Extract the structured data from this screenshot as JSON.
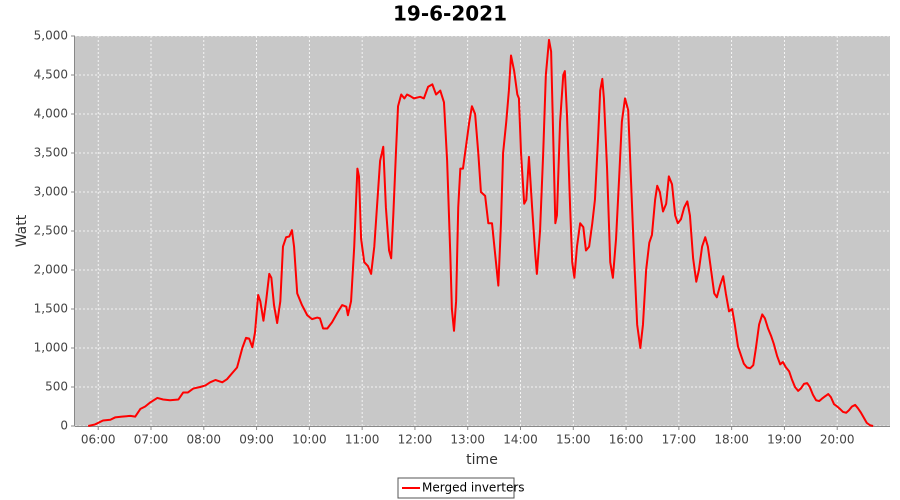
{
  "chart_data": {
    "type": "line",
    "title": "19-6-2021",
    "x_label": "time",
    "y_label": "Watt",
    "x": [
      5.81,
      5.94,
      6.09,
      6.23,
      6.32,
      6.45,
      6.61,
      6.7,
      6.8,
      6.89,
      6.98,
      7.12,
      7.23,
      7.36,
      7.52,
      7.61,
      7.7,
      7.8,
      7.93,
      8.03,
      8.12,
      8.22,
      8.35,
      8.44,
      8.54,
      8.63,
      8.73,
      8.8,
      8.86,
      8.92,
      8.97,
      9.03,
      9.07,
      9.13,
      9.18,
      9.24,
      9.28,
      9.33,
      9.39,
      9.45,
      9.5,
      9.56,
      9.62,
      9.67,
      9.71,
      9.77,
      9.86,
      9.96,
      10.05,
      10.15,
      10.2,
      10.26,
      10.34,
      10.43,
      10.53,
      10.62,
      10.7,
      10.73,
      10.79,
      10.85,
      10.91,
      10.94,
      10.98,
      11.04,
      11.11,
      11.17,
      11.23,
      11.28,
      11.34,
      11.4,
      11.45,
      11.51,
      11.55,
      11.59,
      11.64,
      11.68,
      11.74,
      11.8,
      11.85,
      11.91,
      11.98,
      12.1,
      12.17,
      12.25,
      12.33,
      12.4,
      12.48,
      12.55,
      12.61,
      12.67,
      12.7,
      12.74,
      12.78,
      12.82,
      12.86,
      12.91,
      12.97,
      13.03,
      13.08,
      13.14,
      13.2,
      13.25,
      13.33,
      13.39,
      13.46,
      13.52,
      13.58,
      13.63,
      13.67,
      13.73,
      13.78,
      13.82,
      13.88,
      13.94,
      13.97,
      14.01,
      14.07,
      14.11,
      14.16,
      14.22,
      14.28,
      14.31,
      14.37,
      14.43,
      14.48,
      14.54,
      14.58,
      14.62,
      14.66,
      14.69,
      14.75,
      14.81,
      14.84,
      14.88,
      14.94,
      14.98,
      15.02,
      15.07,
      15.13,
      15.19,
      15.24,
      15.3,
      15.36,
      15.41,
      15.47,
      15.51,
      15.55,
      15.58,
      15.64,
      15.7,
      15.75,
      15.81,
      15.87,
      15.92,
      15.98,
      16.04,
      16.09,
      16.15,
      16.21,
      16.27,
      16.32,
      16.38,
      16.44,
      16.49,
      16.55,
      16.59,
      16.64,
      16.7,
      16.76,
      16.81,
      16.87,
      16.93,
      16.98,
      17.04,
      17.1,
      17.16,
      17.21,
      17.27,
      17.33,
      17.38,
      17.44,
      17.5,
      17.55,
      17.61,
      17.67,
      17.72,
      17.78,
      17.84,
      17.89,
      17.95,
      18.01,
      18.06,
      18.12,
      18.18,
      18.23,
      18.29,
      18.35,
      18.41,
      18.46,
      18.52,
      18.58,
      18.63,
      18.69,
      18.75,
      18.8,
      18.86,
      18.92,
      18.97,
      19.03,
      19.09,
      19.14,
      19.2,
      19.26,
      19.31,
      19.37,
      19.43,
      19.48,
      19.54,
      19.6,
      19.66,
      19.71,
      19.77,
      19.83,
      19.88,
      19.94,
      20.0,
      20.05,
      20.11,
      20.17,
      20.22,
      20.28,
      20.34,
      20.39,
      20.45,
      20.51,
      20.56,
      20.62,
      20.68
    ],
    "series": [
      {
        "name": "Merged inverters",
        "color": "#ff0000",
        "values": [
          0,
          20,
          70,
          80,
          110,
          120,
          130,
          120,
          220,
          250,
          300,
          360,
          340,
          330,
          340,
          430,
          430,
          480,
          500,
          520,
          560,
          590,
          560,
          600,
          680,
          750,
          1000,
          1130,
          1120,
          1010,
          1200,
          1680,
          1600,
          1350,
          1600,
          1950,
          1900,
          1550,
          1320,
          1600,
          2300,
          2420,
          2430,
          2510,
          2300,
          1700,
          1550,
          1420,
          1370,
          1390,
          1380,
          1250,
          1250,
          1330,
          1450,
          1550,
          1530,
          1420,
          1600,
          2300,
          3300,
          3200,
          2400,
          2100,
          2050,
          1950,
          2300,
          2800,
          3400,
          3580,
          2800,
          2250,
          2150,
          2700,
          3500,
          4100,
          4250,
          4200,
          4250,
          4230,
          4200,
          4220,
          4200,
          4350,
          4380,
          4250,
          4300,
          4150,
          3400,
          2200,
          1500,
          1220,
          1600,
          2800,
          3300,
          3300,
          3600,
          3900,
          4100,
          4000,
          3500,
          3000,
          2950,
          2600,
          2600,
          2200,
          1800,
          2600,
          3500,
          3900,
          4300,
          4750,
          4550,
          4250,
          4200,
          3500,
          2850,
          2900,
          3450,
          2800,
          2200,
          1950,
          2500,
          3500,
          4500,
          4950,
          4800,
          3700,
          2600,
          2700,
          3900,
          4500,
          4550,
          4000,
          2800,
          2100,
          1900,
          2300,
          2600,
          2550,
          2250,
          2300,
          2600,
          2900,
          3700,
          4300,
          4450,
          4200,
          3300,
          2100,
          1900,
          2400,
          3200,
          3900,
          4200,
          4050,
          3200,
          2200,
          1300,
          1000,
          1300,
          2000,
          2350,
          2450,
          2900,
          3080,
          3000,
          2750,
          2850,
          3200,
          3100,
          2700,
          2600,
          2650,
          2800,
          2880,
          2700,
          2150,
          1850,
          2000,
          2300,
          2420,
          2300,
          2000,
          1700,
          1650,
          1800,
          1920,
          1700,
          1470,
          1500,
          1300,
          1020,
          900,
          800,
          750,
          740,
          780,
          1000,
          1300,
          1430,
          1380,
          1250,
          1150,
          1050,
          900,
          790,
          820,
          750,
          700,
          600,
          500,
          450,
          480,
          540,
          550,
          500,
          400,
          330,
          320,
          350,
          380,
          410,
          370,
          280,
          250,
          220,
          180,
          170,
          200,
          250,
          270,
          230,
          170,
          100,
          40,
          10,
          0
        ]
      }
    ],
    "xlim": [
      5.56,
      21.0
    ],
    "xticks": [
      {
        "value": 6,
        "label": "06:00"
      },
      {
        "value": 7,
        "label": "07:00"
      },
      {
        "value": 8,
        "label": "08:00"
      },
      {
        "value": 9,
        "label": "09:00"
      },
      {
        "value": 10,
        "label": "10:00"
      },
      {
        "value": 11,
        "label": "11:00"
      },
      {
        "value": 12,
        "label": "12:00"
      },
      {
        "value": 13,
        "label": "13:00"
      },
      {
        "value": 14,
        "label": "14:00"
      },
      {
        "value": 15,
        "label": "15:00"
      },
      {
        "value": 16,
        "label": "16:00"
      },
      {
        "value": 17,
        "label": "17:00"
      },
      {
        "value": 18,
        "label": "18:00"
      },
      {
        "value": 19,
        "label": "19:00"
      },
      {
        "value": 20,
        "label": "20:00"
      }
    ],
    "ylim": [
      0,
      5000
    ],
    "yticks": [
      0,
      500,
      {
        "value": 1000,
        "label": "1,000"
      },
      {
        "value": 1500,
        "label": "1,500"
      },
      {
        "value": 2000,
        "label": "2,000"
      },
      {
        "value": 2500,
        "label": "2,500"
      },
      {
        "value": 3000,
        "label": "3,000"
      },
      {
        "value": 3500,
        "label": "3,500"
      },
      {
        "value": 4000,
        "label": "4,000"
      },
      {
        "value": 4500,
        "label": "4,500"
      },
      {
        "value": 5000,
        "label": "5,000"
      }
    ],
    "grid": true,
    "legend": "bottom"
  }
}
